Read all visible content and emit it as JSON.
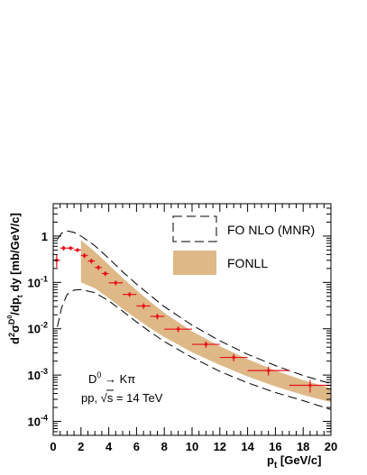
{
  "chart_data": {
    "type": "scatter",
    "xlabel": "p_t [GeV/c]",
    "ylabel": "d^2σ^D0/dp_t dy [mb/GeV/c]",
    "xlim": [
      0,
      20
    ],
    "ylim": [
      5e-05,
      5
    ],
    "yscale": "log",
    "x_ticks": [
      "0",
      "2",
      "4",
      "6",
      "8",
      "10",
      "12",
      "14",
      "16",
      "18",
      "20"
    ],
    "y_ticks": [
      "10^-4",
      "10^-3",
      "10^-2",
      "10^-1",
      "1"
    ],
    "legend_position": "top-right",
    "legend": [
      {
        "name": "FO NLO (MNR)",
        "style": "dashed-outline"
      },
      {
        "name": "FONLL",
        "style": "filled-band",
        "color": "#deb887"
      }
    ],
    "annotations": [
      "D^0 → Kπ",
      "pp, √s = 14 TeV"
    ],
    "fonll_band": {
      "x": [
        2,
        3,
        4,
        5,
        6,
        7,
        8,
        10,
        12,
        14,
        16,
        18,
        20
      ],
      "upper": [
        0.82,
        0.46,
        0.24,
        0.125,
        0.068,
        0.038,
        0.022,
        0.0088,
        0.0042,
        0.0022,
        0.00125,
        0.00078,
        0.00052
      ],
      "lower": [
        0.1,
        0.075,
        0.046,
        0.027,
        0.0165,
        0.0102,
        0.0066,
        0.0031,
        0.00165,
        0.00093,
        0.00057,
        0.00037,
        0.00026
      ]
    },
    "nlo_upper": {
      "x": [
        0.3,
        0.6,
        1,
        1.5,
        2,
        3,
        4,
        5,
        6,
        7,
        8,
        10,
        12,
        14,
        16,
        18,
        20
      ],
      "y": [
        0.85,
        1.15,
        1.3,
        1.2,
        1.0,
        0.62,
        0.33,
        0.17,
        0.092,
        0.052,
        0.03,
        0.012,
        0.0055,
        0.0028,
        0.0016,
        0.00098,
        0.00065
      ]
    },
    "nlo_lower": {
      "x": [
        0.3,
        0.6,
        1,
        1.5,
        2,
        3,
        4,
        5,
        6,
        7,
        8,
        10,
        12,
        14,
        16,
        18,
        20
      ],
      "y": [
        0.011,
        0.028,
        0.055,
        0.068,
        0.07,
        0.06,
        0.04,
        0.024,
        0.014,
        0.0085,
        0.0053,
        0.0024,
        0.0012,
        0.00068,
        0.00042,
        0.00028,
        0.00018
      ]
    },
    "data_points": {
      "color": "#e8101a",
      "x": [
        0.25,
        0.75,
        1.25,
        1.75,
        2.25,
        2.75,
        3.25,
        3.75,
        4.5,
        5.5,
        6.5,
        7.5,
        9,
        11,
        13,
        15.5,
        18.5
      ],
      "xerr": [
        0.25,
        0.25,
        0.25,
        0.25,
        0.25,
        0.25,
        0.25,
        0.25,
        0.5,
        0.5,
        0.5,
        0.5,
        1,
        1,
        1,
        1.5,
        1.5
      ],
      "y": [
        0.3,
        0.55,
        0.55,
        0.5,
        0.38,
        0.29,
        0.21,
        0.155,
        0.098,
        0.055,
        0.031,
        0.0185,
        0.0098,
        0.0046,
        0.0024,
        0.00125,
        0.0006
      ],
      "yerr_rel": [
        0.3,
        0.12,
        0.1,
        0.1,
        0.12,
        0.12,
        0.12,
        0.12,
        0.12,
        0.12,
        0.14,
        0.14,
        0.14,
        0.16,
        0.18,
        0.22,
        0.3
      ]
    }
  }
}
